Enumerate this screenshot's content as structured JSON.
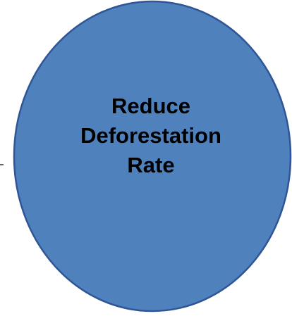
{
  "diagram": {
    "node": {
      "label_lines": [
        "Reduce",
        "Deforestation",
        "Rate"
      ],
      "fill": "#4f81bd",
      "stroke": "#2f5597",
      "shape": "ellipse"
    },
    "connector": {
      "color": "#000000"
    }
  }
}
